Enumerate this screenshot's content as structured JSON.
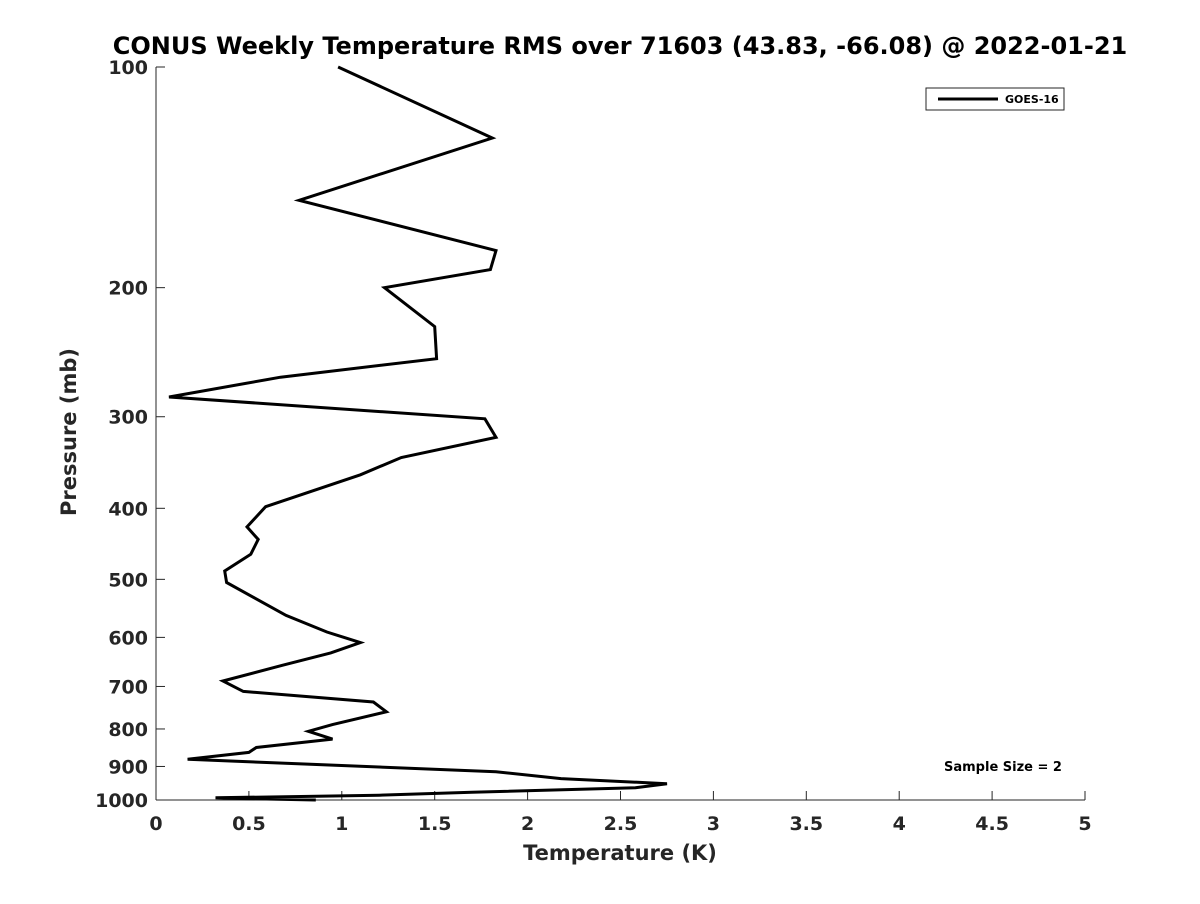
{
  "chart_data": {
    "type": "line",
    "title": "CONUS Weekly Temperature RMS over 71603 (43.83, -66.08) @ 2022-01-21",
    "xlabel": "Temperature (K)",
    "ylabel": "Pressure (mb)",
    "xlim": [
      0,
      5
    ],
    "ylim": [
      100,
      1000
    ],
    "y_scale": "log",
    "y_reversed": true,
    "x_ticks": [
      "0",
      "0.5",
      "1",
      "1.5",
      "2",
      "2.5",
      "3",
      "3.5",
      "4",
      "4.5",
      "5"
    ],
    "y_ticks": [
      "100",
      "200",
      "300",
      "400",
      "500",
      "600",
      "700",
      "800",
      "900",
      "1000"
    ],
    "grid": false,
    "legend": {
      "position": "top-right",
      "entries": [
        "GOES-16"
      ]
    },
    "annotation": "Sample Size = 2",
    "series": [
      {
        "name": "GOES-16",
        "color": "#000000",
        "points": [
          [
            0.98,
            100
          ],
          [
            1.81,
            125
          ],
          [
            0.77,
            152
          ],
          [
            1.83,
            178
          ],
          [
            1.8,
            189
          ],
          [
            1.23,
            200
          ],
          [
            1.5,
            226
          ],
          [
            1.51,
            250
          ],
          [
            0.67,
            265
          ],
          [
            0.07,
            282
          ],
          [
            1.77,
            302
          ],
          [
            1.83,
            320
          ],
          [
            1.32,
            341
          ],
          [
            1.1,
            360
          ],
          [
            0.59,
            398
          ],
          [
            0.49,
            424
          ],
          [
            0.55,
            441
          ],
          [
            0.51,
            462
          ],
          [
            0.37,
            487
          ],
          [
            0.38,
            505
          ],
          [
            0.53,
            530
          ],
          [
            0.7,
            560
          ],
          [
            0.92,
            590
          ],
          [
            1.1,
            610
          ],
          [
            0.94,
            630
          ],
          [
            0.68,
            655
          ],
          [
            0.36,
            688
          ],
          [
            0.47,
            711
          ],
          [
            1.17,
            735
          ],
          [
            1.24,
            758
          ],
          [
            0.95,
            789
          ],
          [
            0.82,
            806
          ],
          [
            0.95,
            826
          ],
          [
            0.54,
            848
          ],
          [
            0.5,
            861
          ],
          [
            0.17,
            880
          ],
          [
            1.83,
            915
          ],
          [
            2.18,
            935
          ],
          [
            2.75,
            950
          ],
          [
            2.58,
            962
          ],
          [
            1.7,
            976
          ],
          [
            1.2,
            985
          ],
          [
            0.32,
            993
          ],
          [
            0.5,
            996
          ],
          [
            0.86,
            1000
          ]
        ]
      }
    ]
  }
}
